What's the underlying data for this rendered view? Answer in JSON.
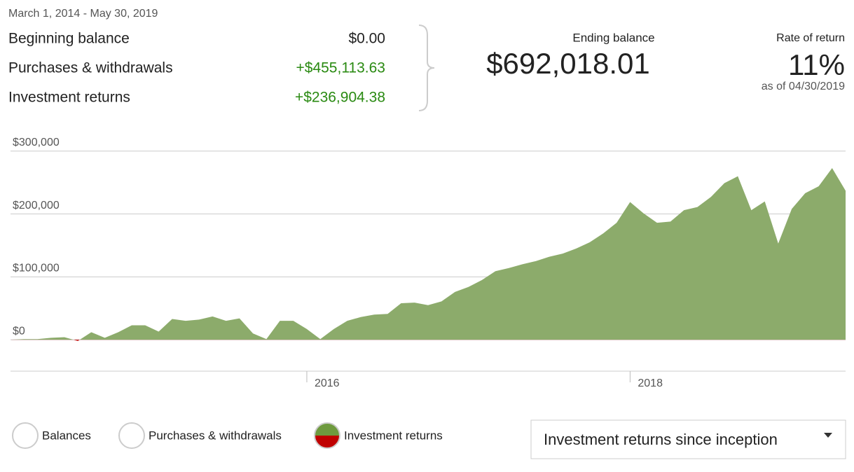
{
  "header": {
    "date_range": "March 1, 2014 - May 30, 2019"
  },
  "summary": {
    "rows": [
      [
        "Beginning balance",
        "$0.00"
      ],
      [
        "Purchases & withdrawals",
        "+$455,113.63"
      ],
      [
        "Investment returns",
        "+$236,904.38"
      ]
    ],
    "ending_balance_label": "Ending balance",
    "ending_balance": "$692,018.01",
    "rate_label": "Rate of return",
    "rate": "11%",
    "as_of": "as of 04/30/2019"
  },
  "chart_data": {
    "type": "area",
    "categories": [
      null,
      null,
      null,
      null,
      null,
      null,
      null,
      null,
      null,
      null,
      null,
      null,
      null,
      null,
      null,
      null,
      null,
      null,
      null,
      null,
      null,
      null,
      "2016",
      null,
      null,
      null,
      null,
      null,
      null,
      null,
      null,
      null,
      null,
      null,
      null,
      null,
      null,
      null,
      null,
      null,
      null,
      null,
      null,
      null,
      null,
      null,
      "2018",
      null,
      null,
      null,
      null,
      null,
      null,
      null,
      null,
      null,
      null,
      null,
      null,
      null,
      null,
      null,
      null
    ],
    "series": [
      {
        "color": "#8cab6b",
        "negative_color": "#c00000",
        "values": [
          0,
          1000,
          1000,
          3000,
          4000,
          -2000,
          12000,
          3000,
          12000,
          23000,
          23000,
          13000,
          33000,
          30000,
          32000,
          37000,
          30000,
          34000,
          10000,
          1000,
          30000,
          30000,
          17000,
          1000,
          17000,
          30000,
          36000,
          40000,
          41000,
          58000,
          59000,
          55000,
          61000,
          76000,
          84000,
          95000,
          109000,
          114000,
          120000,
          125000,
          132000,
          137000,
          145000,
          155000,
          169000,
          186000,
          219000,
          201000,
          186000,
          188000,
          206000,
          211000,
          227000,
          249000,
          260000,
          206000,
          220000,
          153000,
          208000,
          233000,
          244000,
          273000,
          237000
        ]
      }
    ],
    "ylim": [
      -50000,
      312000
    ],
    "yticks": [
      {
        "value": 0,
        "label": "$0"
      },
      {
        "value": 100000,
        "label": "$100,000"
      },
      {
        "value": 200000,
        "label": "$200,000"
      },
      {
        "value": 300000,
        "label": "$300,000"
      }
    ],
    "grid": true
  },
  "controls": {
    "toggles": [
      "Balances",
      "Purchases & withdrawals",
      "Investment returns"
    ],
    "dropdown": "Investment returns since inception"
  }
}
